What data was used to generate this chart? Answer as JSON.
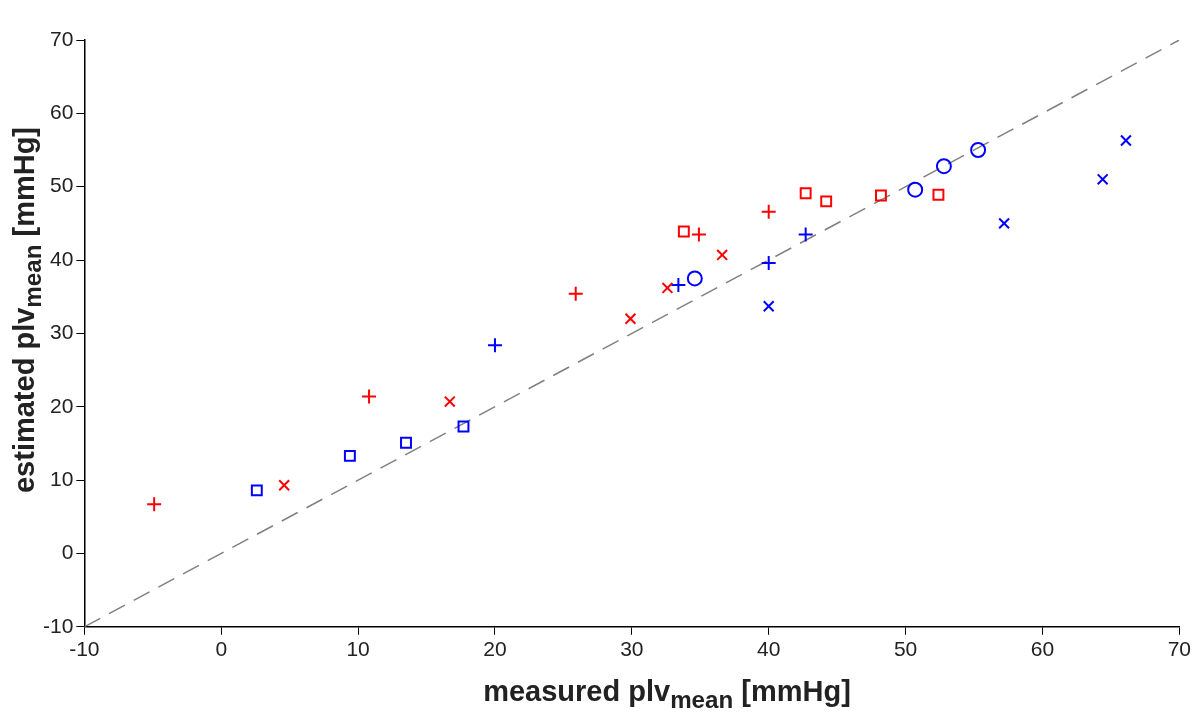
{
  "chart_data": {
    "type": "scatter",
    "xlabel": "measured plv$_{mean}$ [mmHg]",
    "ylabel": "estimated plv$_{mean}$ [mmHg]",
    "xlim": [
      -10,
      70
    ],
    "ylim": [
      -10,
      70
    ],
    "xticks": [
      -10,
      0,
      10,
      20,
      30,
      40,
      50,
      60,
      70
    ],
    "yticks": [
      -10,
      0,
      10,
      20,
      30,
      40,
      50,
      60,
      70
    ],
    "grid": false,
    "legend": false,
    "series": [
      {
        "color": "#ff0000",
        "marker": "plus",
        "x": [
          -4.9,
          10.8,
          25.9,
          34.9,
          40.0
        ],
        "values": [
          6.7,
          21.4,
          35.4,
          43.5,
          46.6
        ]
      },
      {
        "color": "#ff0000",
        "marker": "cross",
        "x": [
          4.6,
          16.7,
          29.9,
          32.6,
          36.6
        ],
        "values": [
          9.3,
          20.7,
          32.0,
          36.2,
          40.7
        ]
      },
      {
        "color": "#ff0000",
        "marker": "square",
        "x": [
          33.8,
          42.7,
          44.2,
          48.2,
          52.4
        ],
        "values": [
          43.9,
          49.1,
          48.0,
          48.8,
          48.9
        ]
      },
      {
        "color": "#0000ff",
        "marker": "square",
        "x": [
          2.6,
          9.4,
          13.5,
          17.7
        ],
        "values": [
          8.6,
          13.3,
          15.1,
          17.3
        ]
      },
      {
        "color": "#0000ff",
        "marker": "plus",
        "x": [
          20.0,
          33.4,
          40.0,
          42.7
        ],
        "values": [
          28.4,
          36.6,
          39.6,
          43.5
        ]
      },
      {
        "color": "#0000ff",
        "marker": "circle",
        "x": [
          34.6,
          50.7,
          52.8,
          55.3
        ],
        "values": [
          37.5,
          49.6,
          52.8,
          55.0
        ]
      },
      {
        "color": "#0000ff",
        "marker": "cross",
        "x": [
          40.0,
          57.2,
          64.4,
          66.1
        ],
        "values": [
          33.7,
          45.0,
          51.0,
          56.3
        ]
      },
      {
        "type": "line",
        "color": "#808080",
        "line_style": "dashed",
        "marker": "none",
        "x": [
          -10,
          70
        ],
        "values": [
          -10,
          70
        ]
      }
    ]
  }
}
